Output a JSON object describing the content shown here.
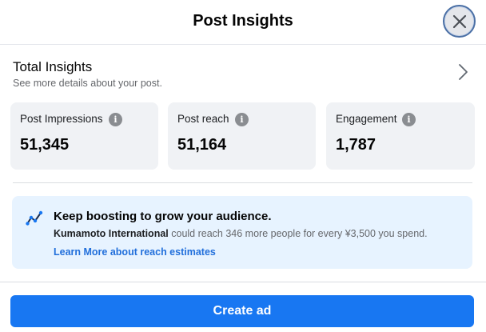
{
  "header": {
    "title": "Post Insights"
  },
  "summary": {
    "title": "Total Insights",
    "subtitle": "See more details about your post."
  },
  "metrics": [
    {
      "label": "Post Impressions",
      "value": "51,345"
    },
    {
      "label": "Post reach",
      "value": "51,164"
    },
    {
      "label": "Engagement",
      "value": "1,787"
    }
  ],
  "boost": {
    "title": "Keep boosting to grow your audience.",
    "page_name": "Kumamoto International",
    "text": " could reach 346 more people for every ¥3,500 you spend.",
    "link": "Learn More about reach estimates"
  },
  "footer": {
    "cta": "Create ad"
  },
  "icons": {
    "close": "close-icon",
    "chevron": "chevron-right-icon",
    "info": "info-icon",
    "boost": "trend-line-icon"
  },
  "colors": {
    "primary": "#1877f2",
    "link": "#216fdb",
    "boost_bg": "#e7f3ff",
    "card_bg": "#f0f2f5"
  }
}
